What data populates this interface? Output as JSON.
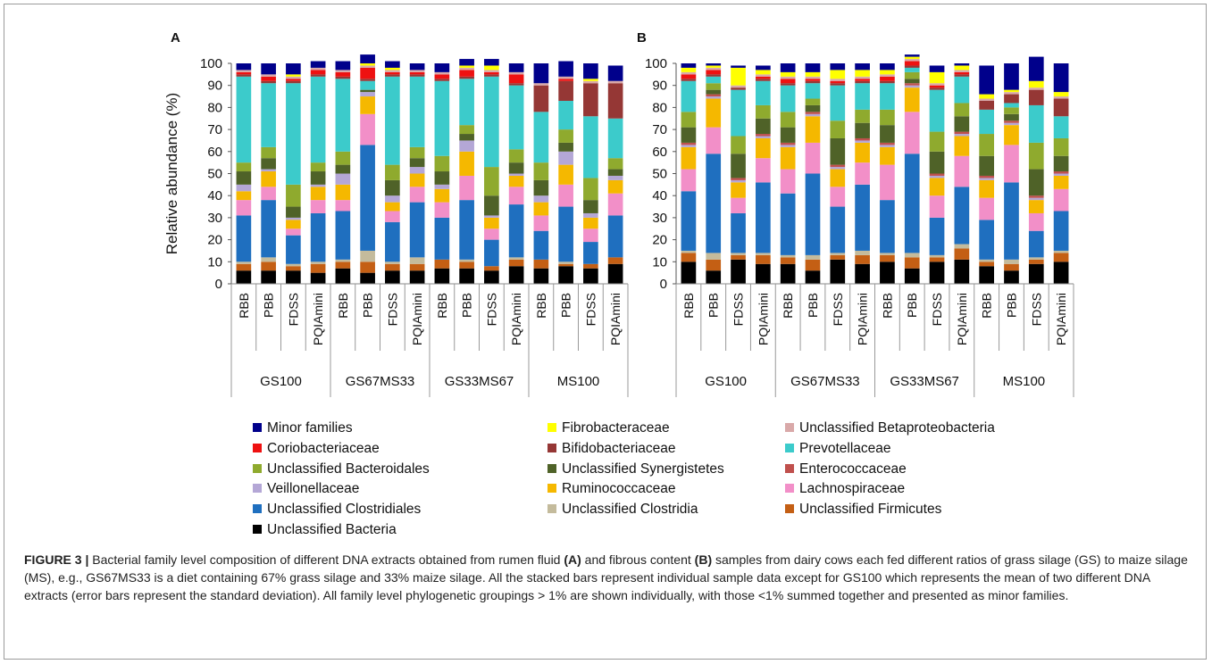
{
  "families": [
    {
      "name": "Unclassified Bacteria",
      "color": "#000000"
    },
    {
      "name": "Unclassified Firmicutes",
      "color": "#c45f14"
    },
    {
      "name": "Unclassified Clostridia",
      "color": "#c4bb9c"
    },
    {
      "name": "Unclassified Clostridiales",
      "color": "#1f6fbf"
    },
    {
      "name": "Lachnospiraceae",
      "color": "#f28fc8"
    },
    {
      "name": "Ruminococcaceae",
      "color": "#f5b800"
    },
    {
      "name": "Veillonellaceae",
      "color": "#b4a7d6"
    },
    {
      "name": "Enterococcaceae",
      "color": "#c0504d"
    },
    {
      "name": "Unclassified Synergistetes",
      "color": "#4f6228"
    },
    {
      "name": "Unclassified Bacteroidales",
      "color": "#8faa2e"
    },
    {
      "name": "Prevotellaceae",
      "color": "#3ccbcb"
    },
    {
      "name": "Bifidobacteriaceae",
      "color": "#953735"
    },
    {
      "name": "Coriobacteriaceae",
      "color": "#ee1111"
    },
    {
      "name": "Unclassified Betaproteobacteria",
      "color": "#d9a9a9"
    },
    {
      "name": "Fibrobacteraceae",
      "color": "#ffff00"
    },
    {
      "name": "Minor families",
      "color": "#00008b"
    }
  ],
  "legend_order": [
    "Minor families",
    "Fibrobacteraceae",
    "Unclassified Betaproteobacteria",
    "Coriobacteriaceae",
    "Bifidobacteriaceae",
    "Prevotellaceae",
    "Unclassified Bacteroidales",
    "Unclassified Synergistetes",
    "Enterococcaceae",
    "Veillonellaceae",
    "Ruminococcaceae",
    "Lachnospiraceae",
    "Unclassified Clostridiales",
    "Unclassified Clostridia",
    "Unclassified Firmicutes",
    "Unclassified Bacteria"
  ],
  "chart_data": [
    {
      "type": "bar",
      "stacked": true,
      "panel": "A",
      "ylabel": "Relative abundance (%)",
      "ylim": [
        0,
        100
      ],
      "yticks": [
        0,
        10,
        20,
        30,
        40,
        50,
        60,
        70,
        80,
        90,
        100
      ],
      "groups": [
        "GS100",
        "GS67MS33",
        "GS33MS67",
        "MS100"
      ],
      "categories": [
        "RBB",
        "PBB",
        "FDSS",
        "PQIAmini",
        "RBB",
        "PBB",
        "FDSS",
        "PQIAmini",
        "RBB",
        "PBB",
        "FDSS",
        "PQIAmini",
        "RBB",
        "PBB",
        "FDSS",
        "PQIAmini"
      ],
      "series": [
        {
          "name": "Unclassified Bacteria",
          "values": [
            6,
            6,
            6,
            5,
            7,
            5,
            6,
            6,
            7,
            7,
            6,
            8,
            7,
            8,
            7,
            9
          ]
        },
        {
          "name": "Unclassified Firmicutes",
          "values": [
            3,
            4,
            2,
            4,
            3,
            5,
            3,
            3,
            4,
            3,
            2,
            3,
            4,
            1,
            2,
            3
          ]
        },
        {
          "name": "Unclassified Clostridia",
          "values": [
            1,
            2,
            1,
            1,
            1,
            5,
            1,
            3,
            0,
            1,
            0,
            1,
            0,
            1,
            0,
            0
          ]
        },
        {
          "name": "Unclassified Clostridiales",
          "values": [
            21,
            26,
            13,
            22,
            22,
            48,
            18,
            25,
            19,
            27,
            12,
            24,
            13,
            25,
            10,
            19
          ]
        },
        {
          "name": "Lachnospiraceae",
          "values": [
            7,
            6,
            3,
            6,
            5,
            14,
            5,
            7,
            7,
            11,
            5,
            8,
            7,
            10,
            6,
            10
          ]
        },
        {
          "name": "Ruminococcaceae",
          "values": [
            4,
            7,
            4,
            6,
            7,
            8,
            4,
            6,
            6,
            11,
            5,
            5,
            6,
            9,
            5,
            6
          ]
        },
        {
          "name": "Veillonellaceae",
          "values": [
            3,
            1,
            1,
            1,
            5,
            2,
            3,
            3,
            2,
            5,
            1,
            1,
            3,
            6,
            2,
            2
          ]
        },
        {
          "name": "Enterococcaceae",
          "values": [
            0,
            0,
            0,
            0,
            0,
            0,
            0,
            0,
            0,
            0,
            0,
            0,
            0,
            0,
            0,
            0
          ]
        },
        {
          "name": "Unclassified Synergistetes",
          "values": [
            6,
            5,
            5,
            6,
            4,
            1,
            7,
            4,
            6,
            3,
            9,
            5,
            7,
            4,
            6,
            3
          ]
        },
        {
          "name": "Unclassified Bacteroidales",
          "values": [
            4,
            5,
            10,
            4,
            6,
            0,
            7,
            5,
            7,
            4,
            13,
            6,
            8,
            6,
            10,
            5
          ]
        },
        {
          "name": "Prevotellaceae",
          "values": [
            39,
            29,
            46,
            39,
            33,
            4,
            40,
            32,
            34,
            21,
            41,
            29,
            23,
            13,
            28,
            18
          ]
        },
        {
          "name": "Bifidobacteriaceae",
          "values": [
            1,
            1,
            1,
            1,
            1,
            1,
            1,
            1,
            1,
            1,
            1,
            1,
            12,
            9,
            15,
            16
          ]
        },
        {
          "name": "Coriobacteriaceae",
          "values": [
            1,
            2,
            1,
            2,
            2,
            5,
            1,
            1,
            2,
            3,
            1,
            4,
            0,
            1,
            0,
            0
          ]
        },
        {
          "name": "Unclassified Betaproteobacteria",
          "values": [
            1,
            1,
            1,
            1,
            1,
            1,
            1,
            1,
            1,
            1,
            1,
            1,
            1,
            1,
            1,
            1
          ]
        },
        {
          "name": "Fibrobacteraceae",
          "values": [
            0,
            0,
            1,
            0,
            0,
            1,
            1,
            0,
            0,
            1,
            2,
            0,
            0,
            0,
            1,
            0
          ]
        },
        {
          "name": "Minor families",
          "values": [
            3,
            5,
            5,
            3,
            4,
            4,
            3,
            3,
            4,
            3,
            3,
            4,
            9,
            7,
            7,
            7
          ]
        }
      ]
    },
    {
      "type": "bar",
      "stacked": true,
      "panel": "B",
      "ylabel": "",
      "ylim": [
        0,
        100
      ],
      "yticks": [
        0,
        10,
        20,
        30,
        40,
        50,
        60,
        70,
        80,
        90,
        100
      ],
      "groups": [
        "GS100",
        "GS67MS33",
        "GS33MS67",
        "MS100"
      ],
      "categories": [
        "RBB",
        "PBB",
        "FDSS",
        "PQIAmini",
        "RBB",
        "PBB",
        "FDSS",
        "PQIAmini",
        "RBB",
        "PBB",
        "FDSS",
        "PQIAmini",
        "RBB",
        "PBB",
        "FDSS",
        "PQIAmini"
      ],
      "series": [
        {
          "name": "Unclassified Bacteria",
          "values": [
            10,
            6,
            11,
            9,
            9,
            6,
            11,
            9,
            10,
            7,
            10,
            11,
            8,
            6,
            9,
            10
          ]
        },
        {
          "name": "Unclassified Firmicutes",
          "values": [
            4,
            5,
            2,
            4,
            3,
            5,
            2,
            4,
            3,
            5,
            2,
            5,
            2,
            3,
            2,
            4
          ]
        },
        {
          "name": "Unclassified Clostridia",
          "values": [
            1,
            3,
            1,
            1,
            1,
            2,
            1,
            2,
            1,
            2,
            1,
            2,
            1,
            2,
            1,
            1
          ]
        },
        {
          "name": "Unclassified Clostridiales",
          "values": [
            27,
            45,
            18,
            32,
            28,
            37,
            21,
            30,
            24,
            45,
            17,
            26,
            18,
            35,
            12,
            18
          ]
        },
        {
          "name": "Lachnospiraceae",
          "values": [
            10,
            12,
            7,
            11,
            11,
            14,
            9,
            10,
            16,
            19,
            10,
            14,
            10,
            17,
            8,
            10
          ]
        },
        {
          "name": "Ruminococcaceae",
          "values": [
            10,
            13,
            7,
            9,
            10,
            12,
            8,
            9,
            8,
            11,
            8,
            9,
            8,
            9,
            6,
            6
          ]
        },
        {
          "name": "Veillonellaceae",
          "values": [
            1,
            1,
            1,
            1,
            1,
            1,
            1,
            1,
            1,
            1,
            1,
            1,
            1,
            1,
            1,
            1
          ]
        },
        {
          "name": "Enterococcaceae",
          "values": [
            1,
            1,
            1,
            1,
            1,
            1,
            1,
            1,
            1,
            1,
            1,
            1,
            1,
            1,
            1,
            1
          ]
        },
        {
          "name": "Unclassified Synergistetes",
          "values": [
            7,
            2,
            11,
            7,
            7,
            3,
            12,
            7,
            8,
            2,
            10,
            7,
            9,
            3,
            12,
            7
          ]
        },
        {
          "name": "Unclassified Bacteroidales",
          "values": [
            7,
            3,
            8,
            6,
            7,
            3,
            8,
            6,
            7,
            3,
            9,
            6,
            10,
            3,
            12,
            8
          ]
        },
        {
          "name": "Prevotellaceae",
          "values": [
            14,
            3,
            21,
            11,
            12,
            7,
            16,
            12,
            12,
            2,
            19,
            12,
            11,
            2,
            17,
            10
          ]
        },
        {
          "name": "Bifidobacteriaceae",
          "values": [
            1,
            1,
            1,
            1,
            1,
            1,
            1,
            1,
            1,
            1,
            1,
            1,
            4,
            4,
            7,
            8
          ]
        },
        {
          "name": "Coriobacteriaceae",
          "values": [
            2,
            2,
            0,
            1,
            2,
            1,
            1,
            1,
            2,
            2,
            1,
            1,
            0,
            0,
            0,
            0
          ]
        },
        {
          "name": "Unclassified Betaproteobacteria",
          "values": [
            1,
            1,
            1,
            1,
            1,
            1,
            1,
            1,
            1,
            1,
            1,
            1,
            1,
            1,
            1,
            1
          ]
        },
        {
          "name": "Fibrobacteraceae",
          "values": [
            2,
            1,
            8,
            2,
            2,
            2,
            4,
            3,
            2,
            1,
            5,
            2,
            2,
            1,
            3,
            2
          ]
        },
        {
          "name": "Minor families",
          "values": [
            2,
            1,
            1,
            2,
            4,
            4,
            3,
            3,
            3,
            1,
            3,
            1,
            13,
            12,
            11,
            13
          ]
        }
      ]
    }
  ],
  "caption": {
    "label": "FIGURE 3 |",
    "part1": " Bacterial family level composition of different DNA extracts obtained from rumen fluid ",
    "letter_a": "(A)",
    "part2": " and fibrous content ",
    "letter_b": "(B)",
    "part3": " samples from dairy cows each fed different ratios of grass silage (GS) to maize silage (MS), e.g., GS67MS33 is a diet containing 67% grass silage and 33% maize silage. All the stacked bars represent individual sample data except for GS100 which represents the mean of two different DNA extracts (error bars represent the standard deviation). All family level phylogenetic groupings > 1% are shown individually, with those <1% summed together and presented as minor families."
  }
}
